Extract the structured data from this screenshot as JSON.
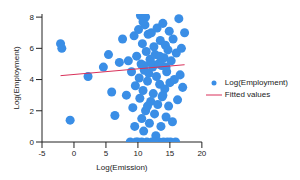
{
  "chart_data": {
    "type": "scatter",
    "x_label": "Log(Emission)",
    "y_label": "Log(Employment)",
    "xlim": [
      -5,
      20
    ],
    "xticks": [
      -5,
      0,
      5,
      10,
      15,
      20
    ],
    "ylim": [
      0,
      8.2
    ],
    "yticks": [
      0,
      2,
      4,
      6,
      8
    ],
    "grid": false,
    "legend": "right",
    "series": [
      {
        "name": "Log(Employment)",
        "type": "scatter",
        "marker": "circle",
        "color": "#3a8ee6",
        "x": [
          -2.1,
          -1.9,
          -0.6,
          2.2,
          4.6,
          5.4,
          5.9,
          6.4,
          7.1,
          7.6,
          8.2,
          8.5,
          8.8,
          9.0,
          9.2,
          9.4,
          9.5,
          9.6,
          9.8,
          10.0,
          10.1,
          10.2,
          10.3,
          10.4,
          10.5,
          10.6,
          10.7,
          10.8,
          10.9,
          11.0,
          11.1,
          11.2,
          11.3,
          11.4,
          11.5,
          11.6,
          11.7,
          11.8,
          11.9,
          12.0,
          12.1,
          12.2,
          12.3,
          12.4,
          12.5,
          12.6,
          12.7,
          12.8,
          12.9,
          13.0,
          13.1,
          13.2,
          13.3,
          13.4,
          13.5,
          13.6,
          13.7,
          13.8,
          13.9,
          14.0,
          14.1,
          14.2,
          14.3,
          14.4,
          14.5,
          14.6,
          14.7,
          14.8,
          14.9,
          15.0,
          15.1,
          15.2,
          15.4,
          15.5,
          15.7,
          15.9,
          16.0,
          16.2,
          16.4,
          16.6,
          16.8,
          17.0,
          17.3,
          9.7,
          10.6,
          12.6,
          13.9,
          11.5,
          12.0,
          10.9,
          13.4,
          14.4,
          11.2,
          10.8
        ],
        "values": [
          6.3,
          6.0,
          1.4,
          4.2,
          4.8,
          5.6,
          3.2,
          1.7,
          5.1,
          6.6,
          3.0,
          5.2,
          0.0,
          4.5,
          2.2,
          6.8,
          1.0,
          3.6,
          5.5,
          0.0,
          7.2,
          4.1,
          2.8,
          8.1,
          5.0,
          1.5,
          6.3,
          3.3,
          0.7,
          4.6,
          7.5,
          2.0,
          5.8,
          0.0,
          3.9,
          6.9,
          4.4,
          1.2,
          5.3,
          2.6,
          7.0,
          0.0,
          4.8,
          3.1,
          6.1,
          1.8,
          5.6,
          0.4,
          4.2,
          7.3,
          2.4,
          5.0,
          0.0,
          3.7,
          6.5,
          1.0,
          4.9,
          2.9,
          7.6,
          0.0,
          5.4,
          3.4,
          6.2,
          1.6,
          4.5,
          0.0,
          5.9,
          2.3,
          7.1,
          3.8,
          0.0,
          5.2,
          1.3,
          6.6,
          4.0,
          0.0,
          5.7,
          2.7,
          7.9,
          4.3,
          6.0,
          3.5,
          7.0,
          0.0,
          0.0,
          0.0,
          3.0,
          2.3,
          5.1,
          4.9,
          5.5,
          4.8,
          8.0,
          7.7
        ]
      },
      {
        "name": "Fitted values",
        "type": "line",
        "line_style": "solid",
        "color": "#d9315a",
        "x": [
          -2.1,
          17.3
        ],
        "values": [
          4.25,
          4.95
        ]
      }
    ]
  }
}
